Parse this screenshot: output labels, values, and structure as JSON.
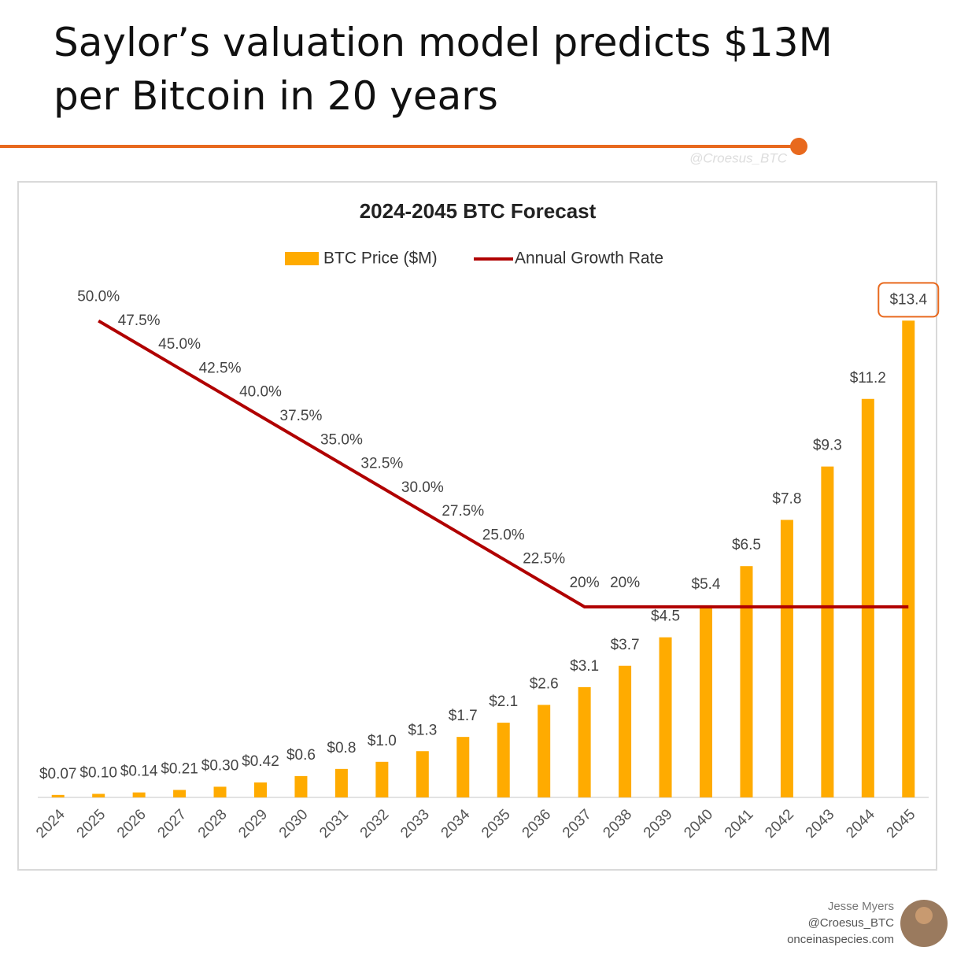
{
  "header": {
    "title": "Saylor’s valuation model predicts $13M per Bitcoin in 20 years",
    "watermark": "@Croesus_BTC"
  },
  "chart_data": {
    "type": "combo",
    "title": "2024-2045 BTC Forecast",
    "categories": [
      "2024",
      "2025",
      "2026",
      "2027",
      "2028",
      "2029",
      "2030",
      "2031",
      "2032",
      "2033",
      "2034",
      "2035",
      "2036",
      "2037",
      "2038",
      "2039",
      "2040",
      "2041",
      "2042",
      "2043",
      "2044",
      "2045"
    ],
    "series": [
      {
        "name": "BTC Price ($M)",
        "type": "bar",
        "color": "#ffab00",
        "values": [
          0.07,
          0.1,
          0.14,
          0.21,
          0.3,
          0.42,
          0.6,
          0.8,
          1.0,
          1.3,
          1.7,
          2.1,
          2.6,
          3.1,
          3.7,
          4.5,
          5.4,
          6.5,
          7.8,
          9.3,
          11.2,
          13.4
        ],
        "value_labels": [
          "$0.07",
          "$0.10",
          "$0.14",
          "$0.21",
          "$0.30",
          "$0.42",
          "$0.6",
          "$0.8",
          "$1.0",
          "$1.3",
          "$1.7",
          "$2.1",
          "$2.6",
          "$3.1",
          "$3.7",
          "$4.5",
          "$5.4",
          "$6.5",
          "$7.8",
          "$9.3",
          "$11.2",
          "$13.4"
        ]
      },
      {
        "name": "Annual Growth Rate",
        "type": "line",
        "axis": "y2",
        "color": "#b00000",
        "values": [
          null,
          50,
          47.5,
          45,
          42.5,
          40,
          37.5,
          35,
          32.5,
          30,
          27.5,
          25,
          22.5,
          20,
          20,
          20,
          20,
          20,
          20,
          20,
          20,
          20
        ],
        "value_labels": [
          null,
          "50.0%",
          "47.5%",
          "45.0%",
          "42.5%",
          "40.0%",
          "37.5%",
          "35.0%",
          "32.5%",
          "30.0%",
          "27.5%",
          "25.0%",
          "22.5%",
          "20%",
          "20%",
          null,
          null,
          null,
          null,
          null,
          null,
          null
        ]
      }
    ],
    "ylim": [
      0,
      15
    ],
    "y2lim": [
      0,
      56
    ],
    "grid": false,
    "legend": "top"
  },
  "footer": {
    "name": "Jesse Myers",
    "handle": "@Croesus_BTC",
    "site": "onceinaspecies.com"
  }
}
